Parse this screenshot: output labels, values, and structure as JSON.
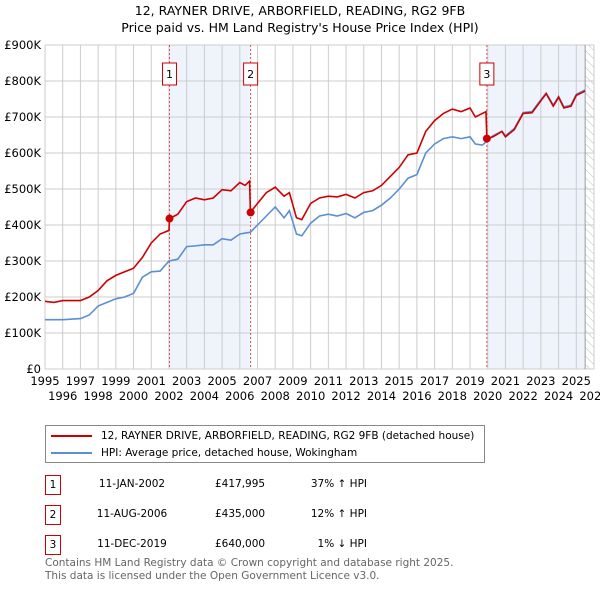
{
  "chart_data": {
    "type": "line",
    "title": "12, RAYNER DRIVE, ARBORFIELD, READING, RG2 9FB",
    "subtitle": "Price paid vs. HM Land Registry's House Price Index (HPI)",
    "xlim": [
      1995,
      2026
    ],
    "ylim": [
      0,
      900000
    ],
    "x_ticks": [
      "1995",
      "1996",
      "1997",
      "1998",
      "1999",
      "2000",
      "2001",
      "2002",
      "2003",
      "2004",
      "2005",
      "2006",
      "2007",
      "2008",
      "2009",
      "2010",
      "2011",
      "2012",
      "2013",
      "2014",
      "2015",
      "2016",
      "2017",
      "2018",
      "2019",
      "2020",
      "2021",
      "2022",
      "2023",
      "2024",
      "2025",
      "2026"
    ],
    "y_ticks": [
      "£0",
      "£100K",
      "£200K",
      "£300K",
      "£400K",
      "£500K",
      "£600K",
      "£700K",
      "£800K",
      "£900K"
    ],
    "grid": true,
    "series": [
      {
        "name": "12, RAYNER DRIVE, ARBORFIELD, READING, RG2 9FB (detached house)",
        "color": "#cc0000",
        "x": [
          1995,
          1995.5,
          1996,
          1997,
          1997.5,
          1998,
          1998.5,
          1999,
          1999.5,
          2000,
          2000.5,
          2001,
          2001.5,
          2002,
          2002.03,
          2002.5,
          2003,
          2003.5,
          2004,
          2004.5,
          2005,
          2005.5,
          2006,
          2006.3,
          2006.55,
          2006.6,
          2007,
          2007.5,
          2008,
          2008.5,
          2008.8,
          2009.2,
          2009.5,
          2010,
          2010.5,
          2011,
          2011.5,
          2012,
          2012.5,
          2013,
          2013.5,
          2014,
          2014.5,
          2015,
          2015.5,
          2016,
          2016.5,
          2017,
          2017.5,
          2018,
          2018.5,
          2019,
          2019.3,
          2019.5,
          2019.9,
          2019.95,
          2020.3,
          2020.8,
          2021,
          2021.5,
          2022,
          2022.5,
          2023,
          2023.3,
          2023.7,
          2024,
          2024.3,
          2024.7,
          2025,
          2025.5
        ],
        "y": [
          188,
          185,
          190,
          190,
          200,
          218,
          245,
          260,
          270,
          280,
          310,
          350,
          375,
          385,
          418,
          430,
          465,
          475,
          470,
          475,
          498,
          495,
          518,
          510,
          522,
          435,
          460,
          490,
          505,
          480,
          490,
          420,
          415,
          460,
          475,
          480,
          478,
          485,
          475,
          490,
          495,
          510,
          535,
          560,
          595,
          600,
          660,
          690,
          710,
          722,
          715,
          725,
          700,
          705,
          715,
          640,
          645,
          660,
          645,
          665,
          710,
          712,
          745,
          765,
          730,
          755,
          725,
          730,
          760,
          772
        ]
      },
      {
        "name": "HPI: Average price, detached house, Wokingham",
        "color": "#5b8fd4",
        "x": [
          1995,
          1996,
          1997,
          1997.5,
          1998,
          1998.5,
          1999,
          1999.5,
          2000,
          2000.5,
          2001,
          2001.5,
          2002,
          2002.5,
          2003,
          2003.5,
          2004,
          2004.5,
          2005,
          2005.5,
          2006,
          2006.6,
          2007,
          2007.5,
          2008,
          2008.5,
          2008.8,
          2009.2,
          2009.5,
          2010,
          2010.5,
          2011,
          2011.5,
          2012,
          2012.5,
          2013,
          2013.5,
          2014,
          2014.5,
          2015,
          2015.5,
          2016,
          2016.5,
          2017,
          2017.5,
          2018,
          2018.5,
          2019,
          2019.3,
          2019.7,
          2020,
          2020.3,
          2020.8,
          2021,
          2021.5,
          2022,
          2022.5,
          2023,
          2023.3,
          2023.7,
          2024,
          2024.3,
          2024.7,
          2025,
          2025.5
        ],
        "y": [
          137,
          137,
          140,
          150,
          175,
          185,
          195,
          200,
          210,
          255,
          270,
          272,
          300,
          305,
          340,
          342,
          345,
          345,
          362,
          358,
          375,
          380,
          400,
          425,
          450,
          420,
          440,
          375,
          370,
          405,
          425,
          430,
          425,
          432,
          420,
          435,
          440,
          455,
          475,
          500,
          530,
          540,
          600,
          625,
          640,
          645,
          640,
          645,
          625,
          622,
          635,
          648,
          660,
          648,
          668,
          712,
          715,
          748,
          766,
          733,
          757,
          728,
          733,
          763,
          775
        ]
      }
    ],
    "sales": [
      {
        "label": "1",
        "x": 2002.03,
        "y": 417995,
        "date": "11-JAN-2002",
        "price": "£417,995",
        "hpi": "37% ↑ HPI"
      },
      {
        "label": "2",
        "x": 2006.61,
        "y": 435000,
        "date": "11-AUG-2006",
        "price": "£435,000",
        "hpi": "12% ↑ HPI"
      },
      {
        "label": "3",
        "x": 2019.95,
        "y": 640000,
        "date": "11-DEC-2019",
        "price": "£640,000",
        "hpi": "1% ↓ HPI"
      }
    ],
    "shaded": [
      [
        2002.03,
        2006.61
      ],
      [
        2019.95,
        2025.5
      ]
    ],
    "hatched_from": 2025.5
  },
  "footer": [
    "Contains HM Land Registry data © Crown copyright and database right 2025.",
    "This data is licensed under the Open Government Licence v3.0."
  ]
}
